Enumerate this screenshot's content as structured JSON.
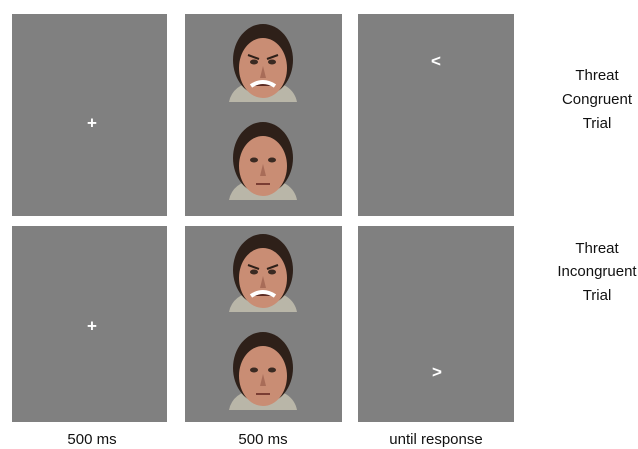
{
  "trials": [
    {
      "fixation": "+",
      "probe": "<",
      "label_lines": [
        "Threat",
        "Congruent",
        "Trial"
      ]
    },
    {
      "fixation": "+",
      "probe": ">",
      "label_lines": [
        "Threat",
        "Incongruent",
        "Trial"
      ]
    }
  ],
  "columns": [
    "500 ms",
    "500 ms",
    "until response"
  ]
}
